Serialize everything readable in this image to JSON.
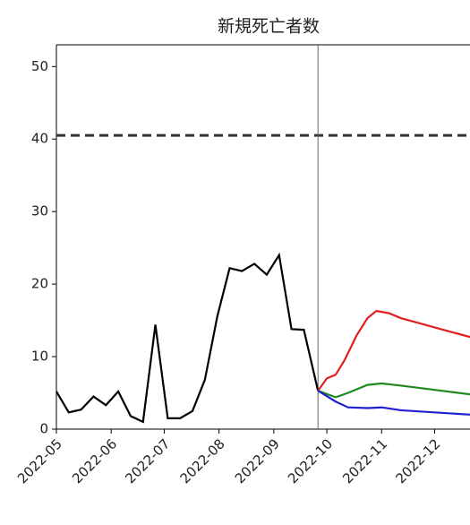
{
  "chart_data": {
    "type": "line",
    "title": "新規死亡者数",
    "xlim": [
      0,
      234
    ],
    "xticks": [
      {
        "value": 0,
        "label": "2022-05"
      },
      {
        "value": 31,
        "label": "2022-06"
      },
      {
        "value": 61,
        "label": "2022-07"
      },
      {
        "value": 92,
        "label": "2022-08"
      },
      {
        "value": 123,
        "label": "2022-09"
      },
      {
        "value": 153,
        "label": "2022-10"
      },
      {
        "value": 184,
        "label": "2022-11"
      },
      {
        "value": 214,
        "label": "2022-12"
      }
    ],
    "ylim": [
      0,
      53
    ],
    "yticks": [
      0,
      10,
      20,
      30,
      40,
      50
    ],
    "hline": 40.5,
    "vline": 148,
    "series": [
      {
        "color": "#000000",
        "x": [
          0,
          7,
          14,
          21,
          28,
          35,
          42,
          49,
          56,
          63,
          70,
          77,
          84,
          91,
          98,
          105,
          112,
          119,
          126,
          133,
          140,
          148
        ],
        "values": [
          5.2,
          2.3,
          2.7,
          4.5,
          3.3,
          5.2,
          1.8,
          1.0,
          14.4,
          1.5,
          1.5,
          2.5,
          6.8,
          15.5,
          22.2,
          21.8,
          22.8,
          21.3,
          24.0,
          13.8,
          13.7,
          5.3
        ]
      },
      {
        "color": "#e02020",
        "x": [
          148,
          153,
          158,
          163,
          170,
          176,
          181,
          188,
          195,
          234
        ],
        "values": [
          5.3,
          7.0,
          7.5,
          9.5,
          13.0,
          15.3,
          16.3,
          16.0,
          15.3,
          12.7
        ]
      },
      {
        "color": "#208a20",
        "x": [
          148,
          158,
          165,
          176,
          184,
          195,
          234
        ],
        "values": [
          5.3,
          4.4,
          5.0,
          6.1,
          6.3,
          6.0,
          4.8
        ]
      },
      {
        "color": "#2020d0",
        "x": [
          148,
          158,
          165,
          176,
          184,
          195,
          234
        ],
        "values": [
          5.3,
          3.8,
          3.0,
          2.9,
          3.0,
          2.6,
          2.0
        ]
      }
    ]
  }
}
